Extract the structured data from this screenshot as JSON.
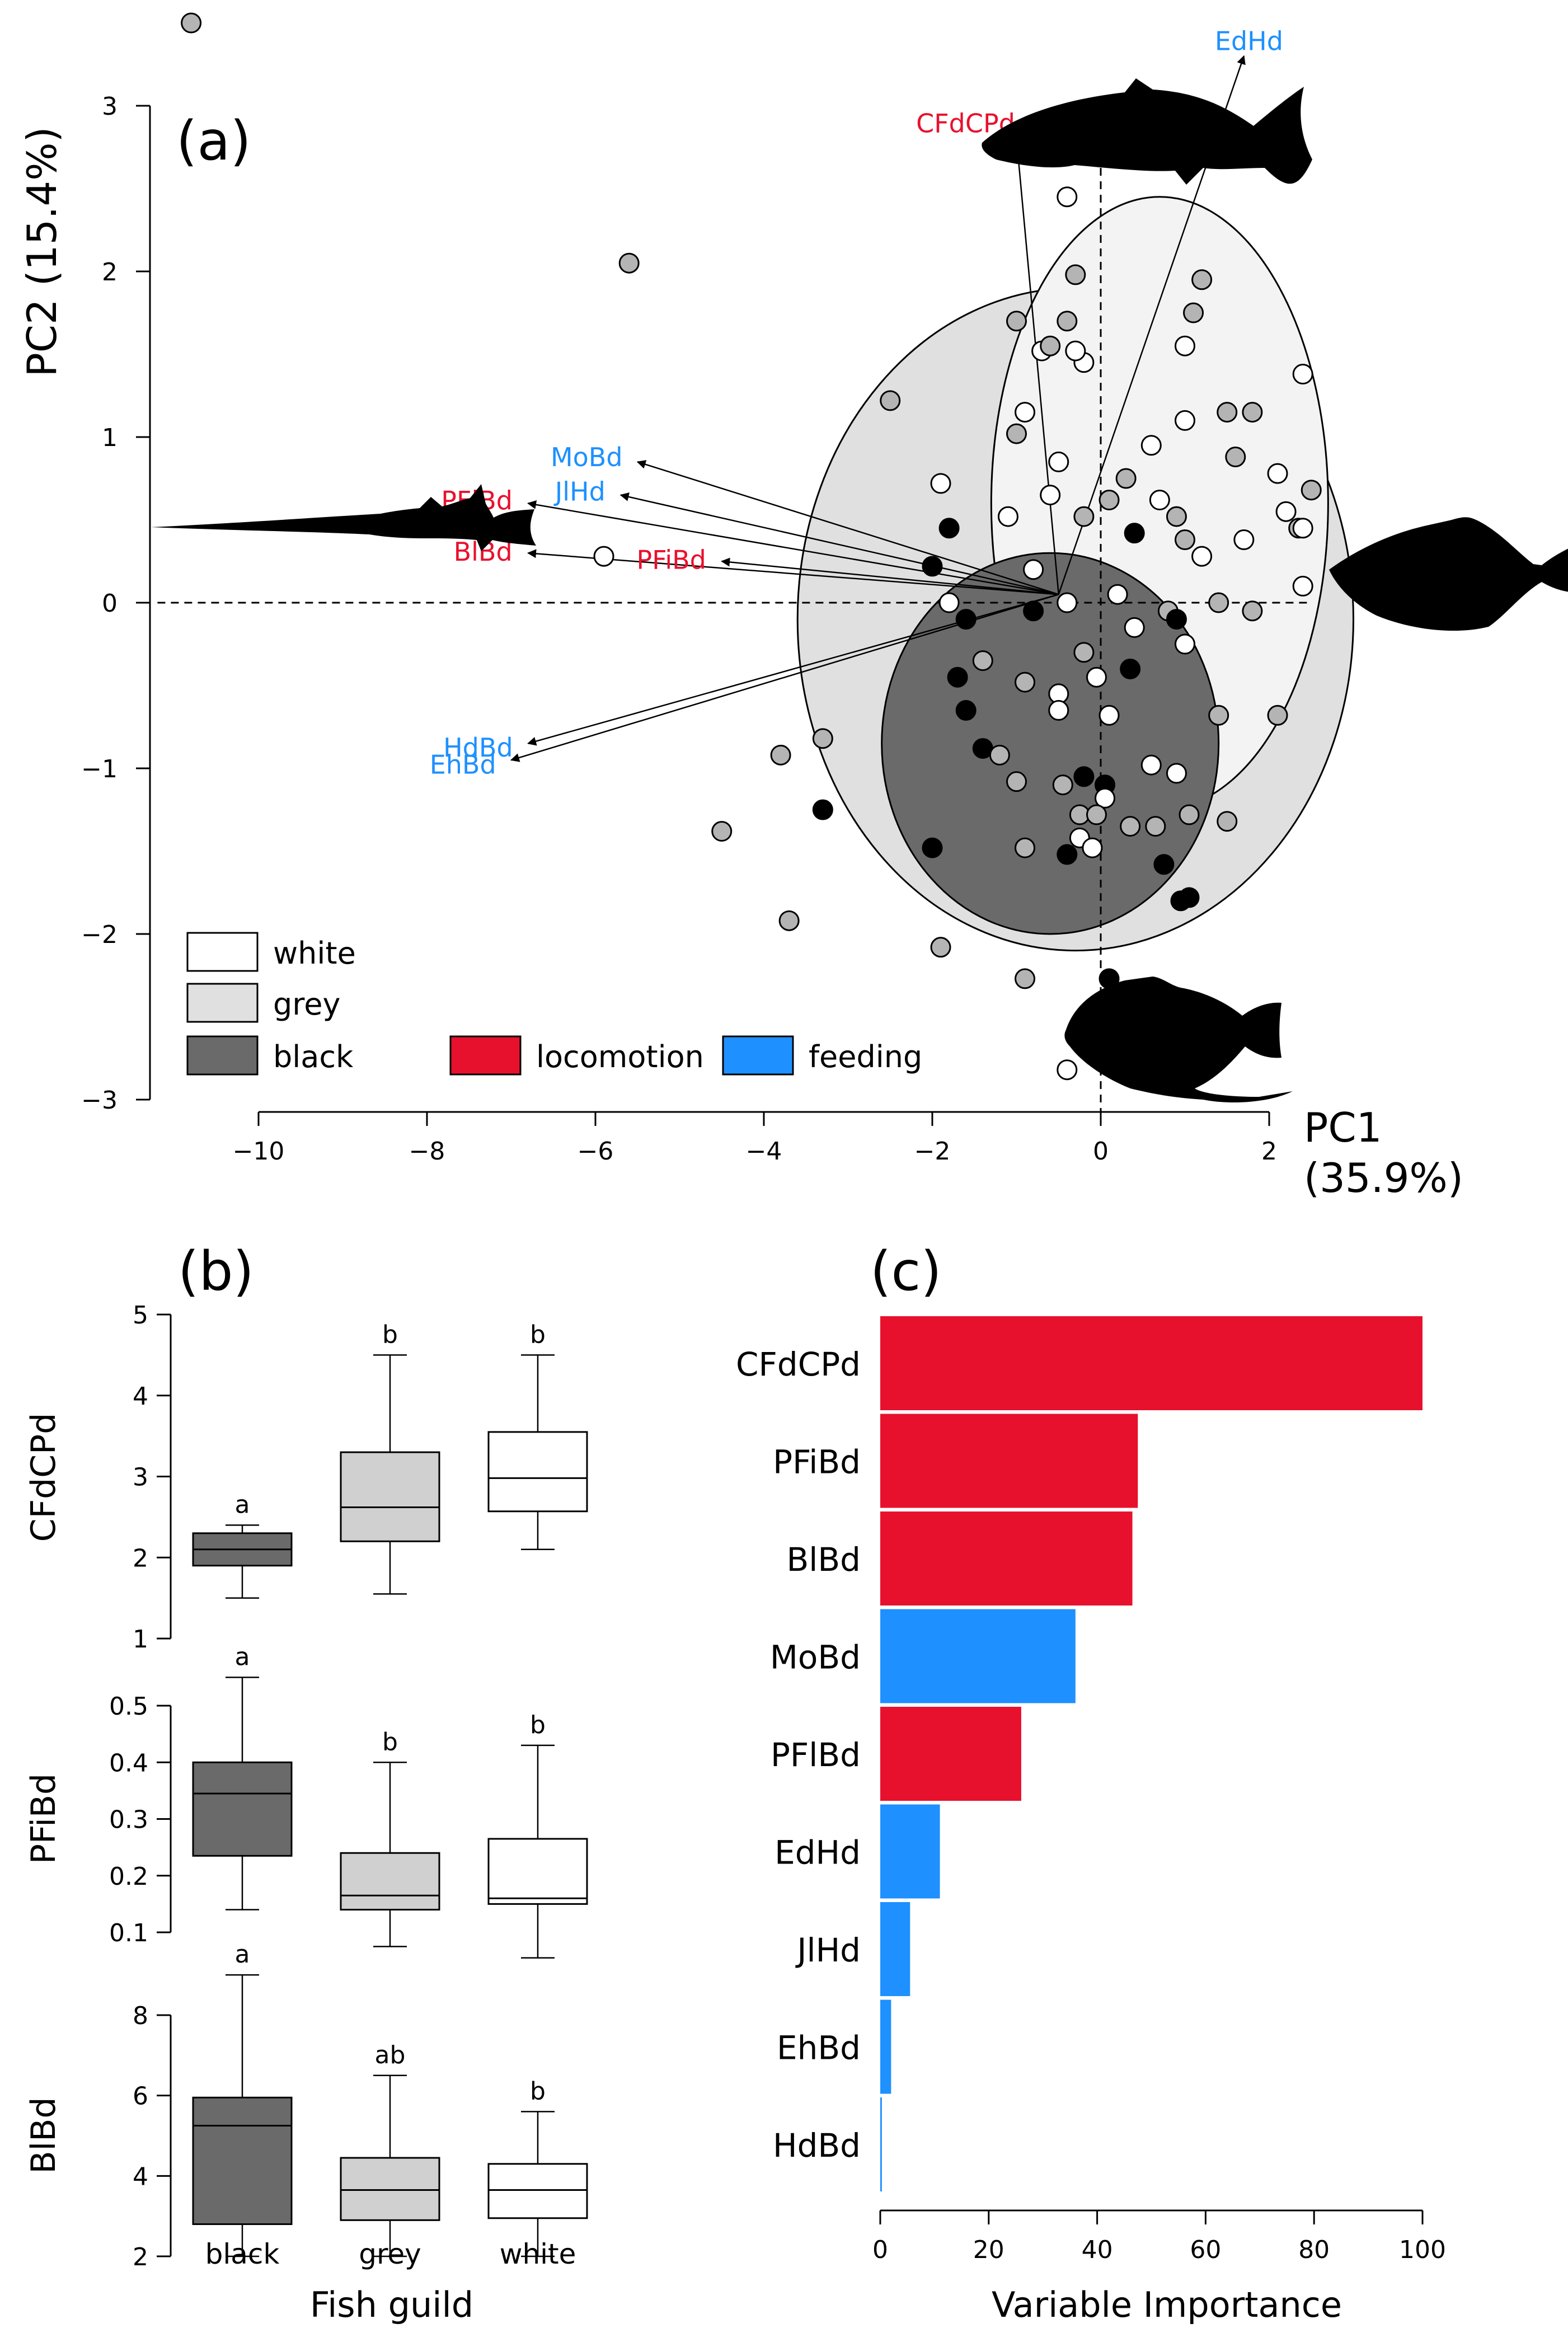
{
  "chart_data": [
    {
      "panel": "(a)",
      "type": "scatter",
      "title": "",
      "xlabel": "PC1",
      "xlabel_pct": "(35.9%)",
      "ylabel": "PC2 (15.4%)",
      "xlim": [
        -10,
        2
      ],
      "ylim": [
        -3,
        3
      ],
      "xticks": [
        -10,
        -8,
        -6,
        -4,
        -2,
        0,
        2
      ],
      "yticks": [
        -3,
        -2,
        -1,
        0,
        1,
        2,
        3
      ],
      "colors": {
        "white": "#ffffff",
        "grey": "#b4b4b4",
        "black": "#000000",
        "locomotion": "#e8112d",
        "feeding": "#1e90ff"
      },
      "ellipses": [
        {
          "group": "grey",
          "cx": -0.3,
          "cy": -0.1,
          "rx": 3.3,
          "ry": 2.0,
          "fill": "#e0e0e0"
        },
        {
          "group": "white",
          "cx": 0.7,
          "cy": 0.6,
          "rx": 2.0,
          "ry": 1.85,
          "fill": "#f3f3f3"
        },
        {
          "group": "black",
          "cx": -0.6,
          "cy": -0.85,
          "rx": 2.0,
          "ry": 1.15,
          "fill": "#6a6a6a"
        }
      ],
      "arrows": [
        {
          "label": "CFdCPd",
          "group": "locomotion",
          "x": -1.0,
          "y": 2.8
        },
        {
          "label": "EdHd",
          "group": "feeding",
          "x": 1.7,
          "y": 3.3
        },
        {
          "label": "MoBd",
          "group": "feeding",
          "x": -5.5,
          "y": 0.85
        },
        {
          "label": "JlHd",
          "group": "feeding",
          "x": -5.7,
          "y": 0.65
        },
        {
          "label": "PFlBd",
          "group": "locomotion",
          "x": -6.8,
          "y": 0.6
        },
        {
          "label": "BlBd",
          "group": "locomotion",
          "x": -6.8,
          "y": 0.3
        },
        {
          "label": "PFiBd",
          "group": "locomotion",
          "x": -4.5,
          "y": 0.25
        },
        {
          "label": "HdBd",
          "group": "feeding",
          "x": -6.8,
          "y": -0.85
        },
        {
          "label": "EhBd",
          "group": "feeding",
          "x": -7.0,
          "y": -0.95
        }
      ],
      "points": [
        {
          "x": -10.8,
          "y": 3.5,
          "g": "grey"
        },
        {
          "x": -5.6,
          "y": 2.05,
          "g": "grey"
        },
        {
          "x": -5.9,
          "y": 0.28,
          "g": "white"
        },
        {
          "x": -2.5,
          "y": 1.22,
          "g": "grey"
        },
        {
          "x": -3.3,
          "y": -0.82,
          "g": "grey"
        },
        {
          "x": -3.8,
          "y": -0.92,
          "g": "grey"
        },
        {
          "x": -4.5,
          "y": -1.38,
          "g": "grey"
        },
        {
          "x": -3.3,
          "y": -1.25,
          "g": "black"
        },
        {
          "x": -3.7,
          "y": -1.92,
          "g": "grey"
        },
        {
          "x": -1.9,
          "y": -2.08,
          "g": "grey"
        },
        {
          "x": -0.9,
          "y": -2.27,
          "g": "grey"
        },
        {
          "x": -0.4,
          "y": -2.82,
          "g": "white"
        },
        {
          "x": 0.1,
          "y": -2.27,
          "g": "black"
        },
        {
          "x": -1.0,
          "y": 1.7,
          "g": "grey"
        },
        {
          "x": -0.4,
          "y": 2.45,
          "g": "white"
        },
        {
          "x": -0.3,
          "y": 1.98,
          "g": "grey"
        },
        {
          "x": 1.2,
          "y": 1.95,
          "g": "grey"
        },
        {
          "x": 1.1,
          "y": 1.75,
          "g": "grey"
        },
        {
          "x": 1.0,
          "y": 1.55,
          "g": "white"
        },
        {
          "x": -0.2,
          "y": 1.45,
          "g": "white"
        },
        {
          "x": -0.4,
          "y": 1.7,
          "g": "grey"
        },
        {
          "x": -0.3,
          "y": 1.52,
          "g": "white"
        },
        {
          "x": -0.7,
          "y": 1.52,
          "g": "white"
        },
        {
          "x": -0.6,
          "y": 1.55,
          "g": "grey"
        },
        {
          "x": -0.9,
          "y": 1.15,
          "g": "white"
        },
        {
          "x": -1.0,
          "y": 1.02,
          "g": "grey"
        },
        {
          "x": -0.5,
          "y": 0.85,
          "g": "white"
        },
        {
          "x": -1.9,
          "y": 0.72,
          "g": "white"
        },
        {
          "x": -0.6,
          "y": 0.65,
          "g": "white"
        },
        {
          "x": -1.1,
          "y": 0.52,
          "g": "white"
        },
        {
          "x": -1.8,
          "y": 0.45,
          "g": "black"
        },
        {
          "x": -0.2,
          "y": 0.52,
          "g": "grey"
        },
        {
          "x": 0.1,
          "y": 0.62,
          "g": "grey"
        },
        {
          "x": 0.3,
          "y": 0.75,
          "g": "grey"
        },
        {
          "x": 0.6,
          "y": 0.95,
          "g": "white"
        },
        {
          "x": 0.7,
          "y": 0.62,
          "g": "white"
        },
        {
          "x": 1.0,
          "y": 1.1,
          "g": "white"
        },
        {
          "x": 0.9,
          "y": 0.52,
          "g": "grey"
        },
        {
          "x": 1.5,
          "y": 1.15,
          "g": "grey"
        },
        {
          "x": 1.8,
          "y": 1.15,
          "g": "grey"
        },
        {
          "x": 2.4,
          "y": 1.38,
          "g": "white"
        },
        {
          "x": 1.6,
          "y": 0.88,
          "g": "grey"
        },
        {
          "x": 2.1,
          "y": 0.78,
          "g": "white"
        },
        {
          "x": 2.5,
          "y": 0.68,
          "g": "grey"
        },
        {
          "x": 2.2,
          "y": 0.55,
          "g": "white"
        },
        {
          "x": 2.35,
          "y": 0.45,
          "g": "grey"
        },
        {
          "x": 2.4,
          "y": 0.45,
          "g": "white"
        },
        {
          "x": 1.7,
          "y": 0.38,
          "g": "white"
        },
        {
          "x": 1.0,
          "y": 0.38,
          "g": "grey"
        },
        {
          "x": 1.2,
          "y": 0.28,
          "g": "white"
        },
        {
          "x": 0.4,
          "y": 0.42,
          "g": "black"
        },
        {
          "x": -2.0,
          "y": 0.22,
          "g": "black"
        },
        {
          "x": -1.8,
          "y": 0.0,
          "g": "white"
        },
        {
          "x": -1.6,
          "y": -0.1,
          "g": "black"
        },
        {
          "x": -0.8,
          "y": 0.2,
          "g": "white"
        },
        {
          "x": -0.4,
          "y": 0.0,
          "g": "white"
        },
        {
          "x": -0.8,
          "y": -0.05,
          "g": "black"
        },
        {
          "x": 0.2,
          "y": 0.05,
          "g": "white"
        },
        {
          "x": 0.4,
          "y": -0.15,
          "g": "white"
        },
        {
          "x": 0.8,
          "y": -0.05,
          "g": "grey"
        },
        {
          "x": 0.9,
          "y": -0.1,
          "g": "black"
        },
        {
          "x": 1.0,
          "y": -0.25,
          "g": "white"
        },
        {
          "x": 1.4,
          "y": 0.0,
          "g": "grey"
        },
        {
          "x": 1.8,
          "y": -0.05,
          "g": "grey"
        },
        {
          "x": 2.4,
          "y": 0.1,
          "g": "white"
        },
        {
          "x": -0.2,
          "y": -0.3,
          "g": "grey"
        },
        {
          "x": 0.35,
          "y": -0.4,
          "g": "black"
        },
        {
          "x": -1.7,
          "y": -0.45,
          "g": "black"
        },
        {
          "x": -1.4,
          "y": -0.35,
          "g": "grey"
        },
        {
          "x": -0.9,
          "y": -0.48,
          "g": "grey"
        },
        {
          "x": -0.5,
          "y": -0.55,
          "g": "white"
        },
        {
          "x": -0.05,
          "y": -0.45,
          "g": "white"
        },
        {
          "x": -1.6,
          "y": -0.65,
          "g": "black"
        },
        {
          "x": -0.5,
          "y": -0.65,
          "g": "white"
        },
        {
          "x": 0.1,
          "y": -0.68,
          "g": "white"
        },
        {
          "x": 1.4,
          "y": -0.68,
          "g": "grey"
        },
        {
          "x": 2.1,
          "y": -0.68,
          "g": "grey"
        },
        {
          "x": -1.4,
          "y": -0.88,
          "g": "black"
        },
        {
          "x": -1.2,
          "y": -0.92,
          "g": "grey"
        },
        {
          "x": -1.0,
          "y": -1.08,
          "g": "grey"
        },
        {
          "x": -0.45,
          "y": -1.1,
          "g": "grey"
        },
        {
          "x": -0.2,
          "y": -1.05,
          "g": "black"
        },
        {
          "x": 0.05,
          "y": -1.1,
          "g": "black"
        },
        {
          "x": 0.6,
          "y": -0.98,
          "g": "white"
        },
        {
          "x": 0.9,
          "y": -1.03,
          "g": "white"
        },
        {
          "x": 0.05,
          "y": -1.18,
          "g": "white"
        },
        {
          "x": -0.25,
          "y": -1.28,
          "g": "grey"
        },
        {
          "x": -0.05,
          "y": -1.28,
          "g": "grey"
        },
        {
          "x": 0.35,
          "y": -1.35,
          "g": "grey"
        },
        {
          "x": 0.65,
          "y": -1.35,
          "g": "grey"
        },
        {
          "x": 1.05,
          "y": -1.28,
          "g": "grey"
        },
        {
          "x": 1.5,
          "y": -1.32,
          "g": "grey"
        },
        {
          "x": -0.25,
          "y": -1.42,
          "g": "white"
        },
        {
          "x": -0.1,
          "y": -1.48,
          "g": "white"
        },
        {
          "x": -0.4,
          "y": -1.52,
          "g": "black"
        },
        {
          "x": -2.0,
          "y": -1.48,
          "g": "black"
        },
        {
          "x": -0.9,
          "y": -1.48,
          "g": "grey"
        },
        {
          "x": 0.75,
          "y": -1.58,
          "g": "black"
        },
        {
          "x": 1.05,
          "y": -1.78,
          "g": "black"
        },
        {
          "x": 0.95,
          "y": -1.8,
          "g": "black"
        }
      ],
      "legend": {
        "guilds": [
          "white",
          "grey",
          "black"
        ],
        "trait_groups": [
          "locomotion",
          "feeding"
        ]
      },
      "annotations": [
        "(a)"
      ]
    },
    {
      "panel": "(b)",
      "type": "box",
      "xlabel": "Fish guild",
      "categories": [
        "black",
        "grey",
        "white"
      ],
      "subplots": [
        {
          "ylabel": "CFdCPd",
          "ylim": [
            1,
            5
          ],
          "yticks": [
            1,
            2,
            3,
            4,
            5
          ],
          "boxes": [
            {
              "min": 1.5,
              "q1": 1.9,
              "median": 2.1,
              "q3": 2.3,
              "max": 2.4,
              "letter": "a"
            },
            {
              "min": 1.55,
              "q1": 2.2,
              "median": 2.62,
              "q3": 3.3,
              "max": 4.5,
              "letter": "b"
            },
            {
              "min": 2.1,
              "q1": 2.57,
              "median": 2.98,
              "q3": 3.55,
              "max": 4.5,
              "letter": "b"
            }
          ]
        },
        {
          "ylabel": "PFiBd",
          "ylim": [
            0.1,
            0.5
          ],
          "yticks": [
            0.1,
            0.2,
            0.3,
            0.4,
            0.5
          ],
          "boxes": [
            {
              "min": 0.14,
              "q1": 0.235,
              "median": 0.345,
              "q3": 0.4,
              "max": 0.55,
              "letter": "a"
            },
            {
              "min": 0.075,
              "q1": 0.14,
              "median": 0.165,
              "q3": 0.24,
              "max": 0.4,
              "letter": "b"
            },
            {
              "min": 0.055,
              "q1": 0.15,
              "median": 0.16,
              "q3": 0.265,
              "max": 0.43,
              "letter": "b"
            }
          ]
        },
        {
          "ylabel": "BlBd",
          "ylim": [
            2,
            8
          ],
          "yticks": [
            2,
            4,
            6,
            8
          ],
          "boxes": [
            {
              "min": 2.0,
              "q1": 2.8,
              "median": 5.25,
              "q3": 5.95,
              "max": 9.0,
              "letter": "a"
            },
            {
              "min": 2.0,
              "q1": 2.9,
              "median": 3.65,
              "q3": 4.45,
              "max": 6.5,
              "letter": "ab"
            },
            {
              "min": 2.0,
              "q1": 2.95,
              "median": 3.65,
              "q3": 4.3,
              "max": 5.6,
              "letter": "b"
            }
          ]
        }
      ]
    },
    {
      "panel": "(c)",
      "type": "bar",
      "orientation": "horizontal",
      "xlabel": "Variable Importance",
      "xlim": [
        0,
        100
      ],
      "xticks": [
        0,
        20,
        40,
        60,
        80,
        100
      ],
      "categories": [
        "CFdCPd",
        "PFiBd",
        "BlBd",
        "MoBd",
        "PFlBd",
        "EdHd",
        "JlHd",
        "EhBd",
        "HdBd"
      ],
      "values": [
        100,
        47.5,
        46.5,
        36,
        26,
        11,
        5.5,
        2,
        0.3
      ],
      "groups": [
        "locomotion",
        "locomotion",
        "locomotion",
        "feeding",
        "locomotion",
        "feeding",
        "feeding",
        "feeding",
        "feeding"
      ]
    }
  ]
}
